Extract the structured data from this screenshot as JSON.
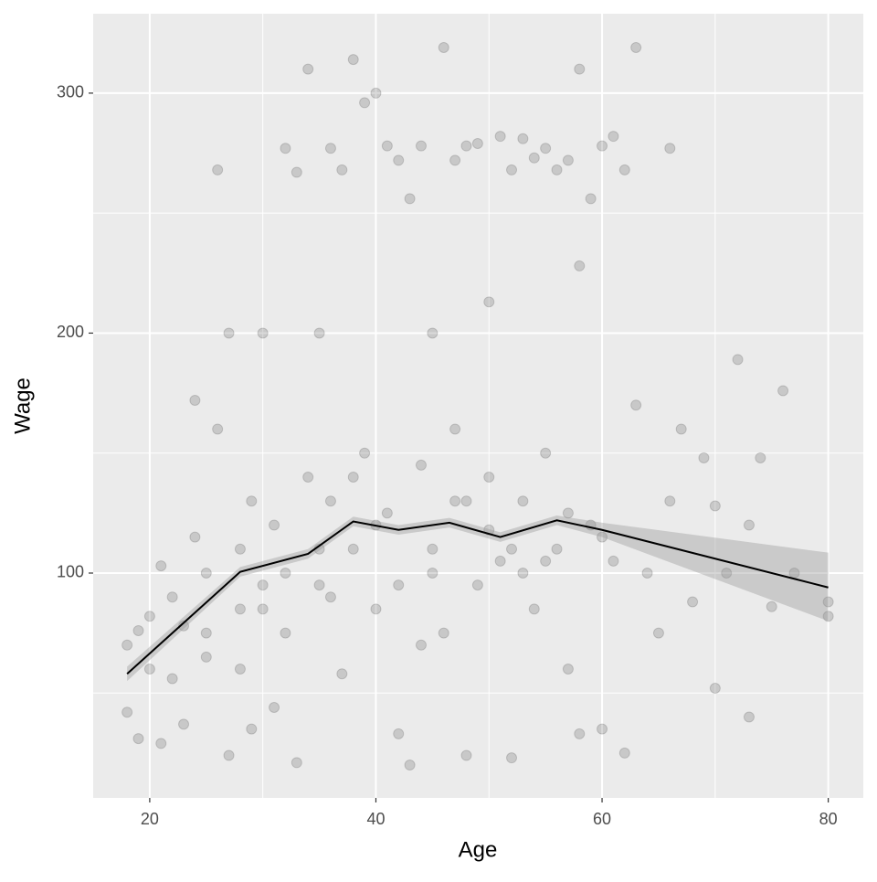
{
  "chart_data": {
    "type": "scatter",
    "x_label": "Age",
    "y_label": "Wage",
    "xlim": [
      15,
      83.1
    ],
    "ylim": [
      6.3,
      333.1
    ],
    "xticks": [
      20,
      40,
      60,
      80
    ],
    "yticks": [
      100,
      200,
      300
    ],
    "xminor": [
      30,
      50,
      70
    ],
    "yminor": [
      50,
      150,
      250
    ],
    "grid": true,
    "point_color": "#000000",
    "point_alpha": 0.15,
    "x": [
      18,
      18,
      19,
      19,
      20,
      20,
      21,
      21,
      22,
      22,
      23,
      23,
      24,
      24,
      25,
      25,
      26,
      26,
      27,
      27,
      28,
      28,
      29,
      29,
      30,
      30,
      31,
      31,
      32,
      32,
      33,
      33,
      34,
      34,
      35,
      35,
      36,
      36,
      37,
      37,
      38,
      38,
      39,
      39,
      40,
      40,
      41,
      41,
      42,
      42,
      43,
      43,
      44,
      44,
      45,
      45,
      46,
      46,
      47,
      47,
      48,
      48,
      49,
      49,
      50,
      50,
      51,
      51,
      52,
      52,
      53,
      53,
      54,
      54,
      55,
      55,
      56,
      56,
      57,
      57,
      58,
      58,
      58,
      59,
      59,
      60,
      60,
      61,
      61,
      62,
      62,
      63,
      63,
      64,
      65,
      66,
      66,
      67,
      68,
      69,
      70,
      70,
      71,
      72,
      73,
      73,
      74,
      75,
      76,
      77,
      80,
      80,
      45,
      40,
      50,
      35,
      42,
      55,
      30,
      25,
      38,
      47,
      53,
      60,
      44,
      36,
      48,
      52,
      57,
      32,
      28
    ],
    "y": [
      70,
      42,
      31,
      76,
      60,
      82,
      29,
      103,
      56,
      90,
      37,
      78,
      172,
      115,
      65,
      100,
      268,
      160,
      200,
      24,
      110,
      85,
      35,
      130,
      200,
      95,
      120,
      44,
      277,
      75,
      267,
      21,
      310,
      140,
      200,
      95,
      277,
      130,
      268,
      58,
      314,
      110,
      296,
      150,
      300,
      85,
      278,
      125,
      272,
      33,
      256,
      20,
      278,
      145,
      200,
      110,
      319,
      75,
      272,
      130,
      278,
      24,
      279,
      95,
      213,
      140,
      282,
      105,
      268,
      23,
      281,
      130,
      273,
      85,
      277,
      150,
      268,
      110,
      272,
      60,
      310,
      228,
      33,
      256,
      120,
      278,
      35,
      282,
      105,
      268,
      25,
      319,
      170,
      100,
      75,
      277,
      130,
      160,
      88,
      148,
      128,
      52,
      100,
      189,
      40,
      120,
      148,
      86,
      176,
      100,
      88,
      82,
      100,
      120,
      118,
      110,
      95,
      105,
      85,
      75,
      140,
      160,
      100,
      115,
      70,
      90,
      130,
      110,
      125,
      100,
      60
    ],
    "fit": {
      "color": "#000000",
      "band_color": "#999999",
      "x": [
        18,
        28,
        34,
        38,
        42,
        46.5,
        51,
        56,
        60,
        80
      ],
      "y": [
        58,
        100.5,
        108,
        121.5,
        118,
        121,
        115,
        122,
        118,
        94
      ],
      "lower": [
        55,
        98.5,
        106,
        119.5,
        116,
        119,
        113,
        120,
        115,
        80
      ],
      "upper": [
        61,
        102.5,
        110,
        123.5,
        120,
        123,
        117,
        124,
        121,
        108.5
      ]
    }
  }
}
